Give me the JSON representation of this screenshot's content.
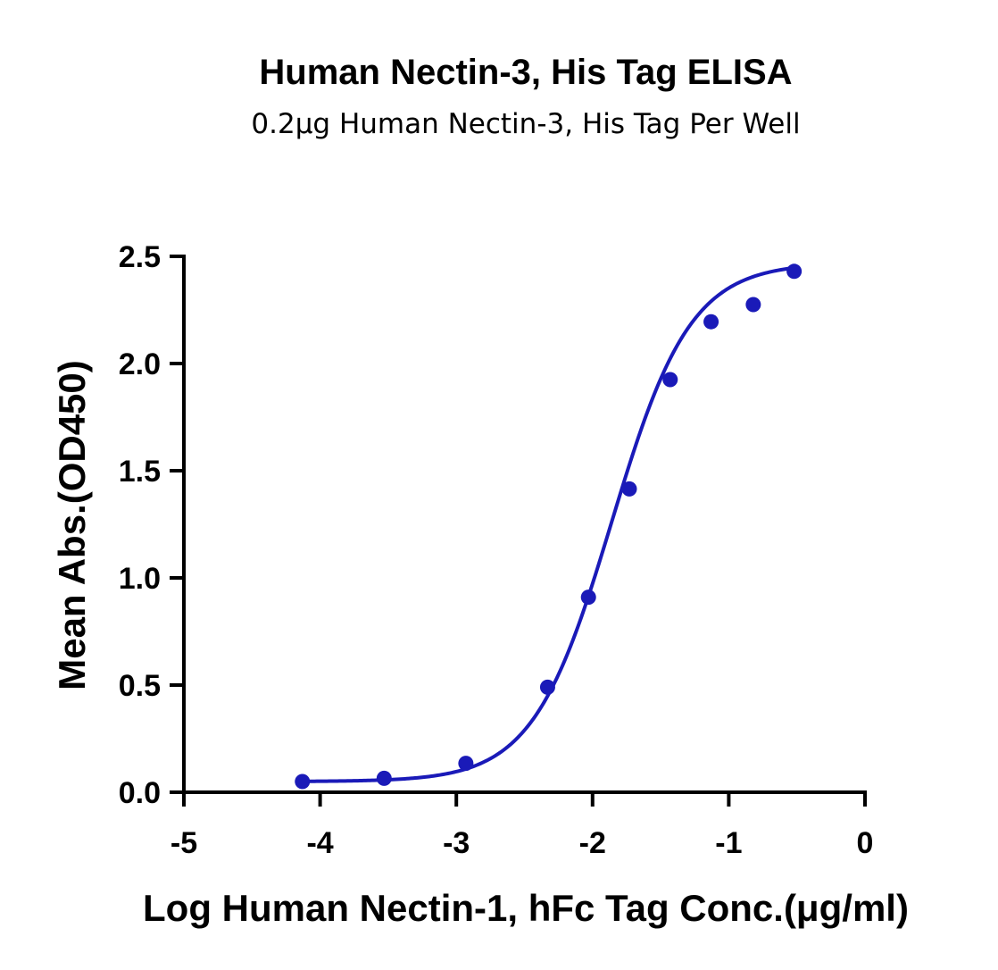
{
  "chart_data": {
    "type": "scatter",
    "title": "Human Nectin-3, His Tag ELISA",
    "subtitle": "0.2μg Human Nectin-3, His Tag Per Well",
    "xlabel": "Log Human Nectin-1, hFc Tag Conc.(μg/ml)",
    "ylabel": "Mean Abs.(OD450)",
    "xlim": [
      -5,
      0
    ],
    "ylim": [
      0,
      2.5
    ],
    "x_ticks": [
      -5,
      -4,
      -3,
      -2,
      -1,
      0
    ],
    "x_tick_labels": [
      "-5",
      "-4",
      "-3",
      "-2",
      "-1",
      "0"
    ],
    "y_ticks": [
      0,
      0.5,
      1.0,
      1.5,
      2.0,
      2.5
    ],
    "y_tick_labels": [
      "0.0",
      "0.5",
      "1.0",
      "1.5",
      "2.0",
      "2.5"
    ],
    "grid": false,
    "color": "#1a1ab8",
    "series": [
      {
        "x": [
          -4.13,
          -3.53,
          -2.93,
          -2.33,
          -2.03,
          -1.73,
          -1.43,
          -1.13,
          -0.82,
          -0.52
        ],
        "y": [
          0.05,
          0.065,
          0.135,
          0.49,
          0.91,
          1.415,
          1.925,
          2.195,
          2.275,
          2.43
        ]
      }
    ],
    "fit_curve": {
      "model": "4PL",
      "bottom": 0.05,
      "top": 2.47,
      "log_ec50": -1.86,
      "hill": 1.5,
      "x_range": [
        -4.13,
        -0.52
      ]
    }
  }
}
